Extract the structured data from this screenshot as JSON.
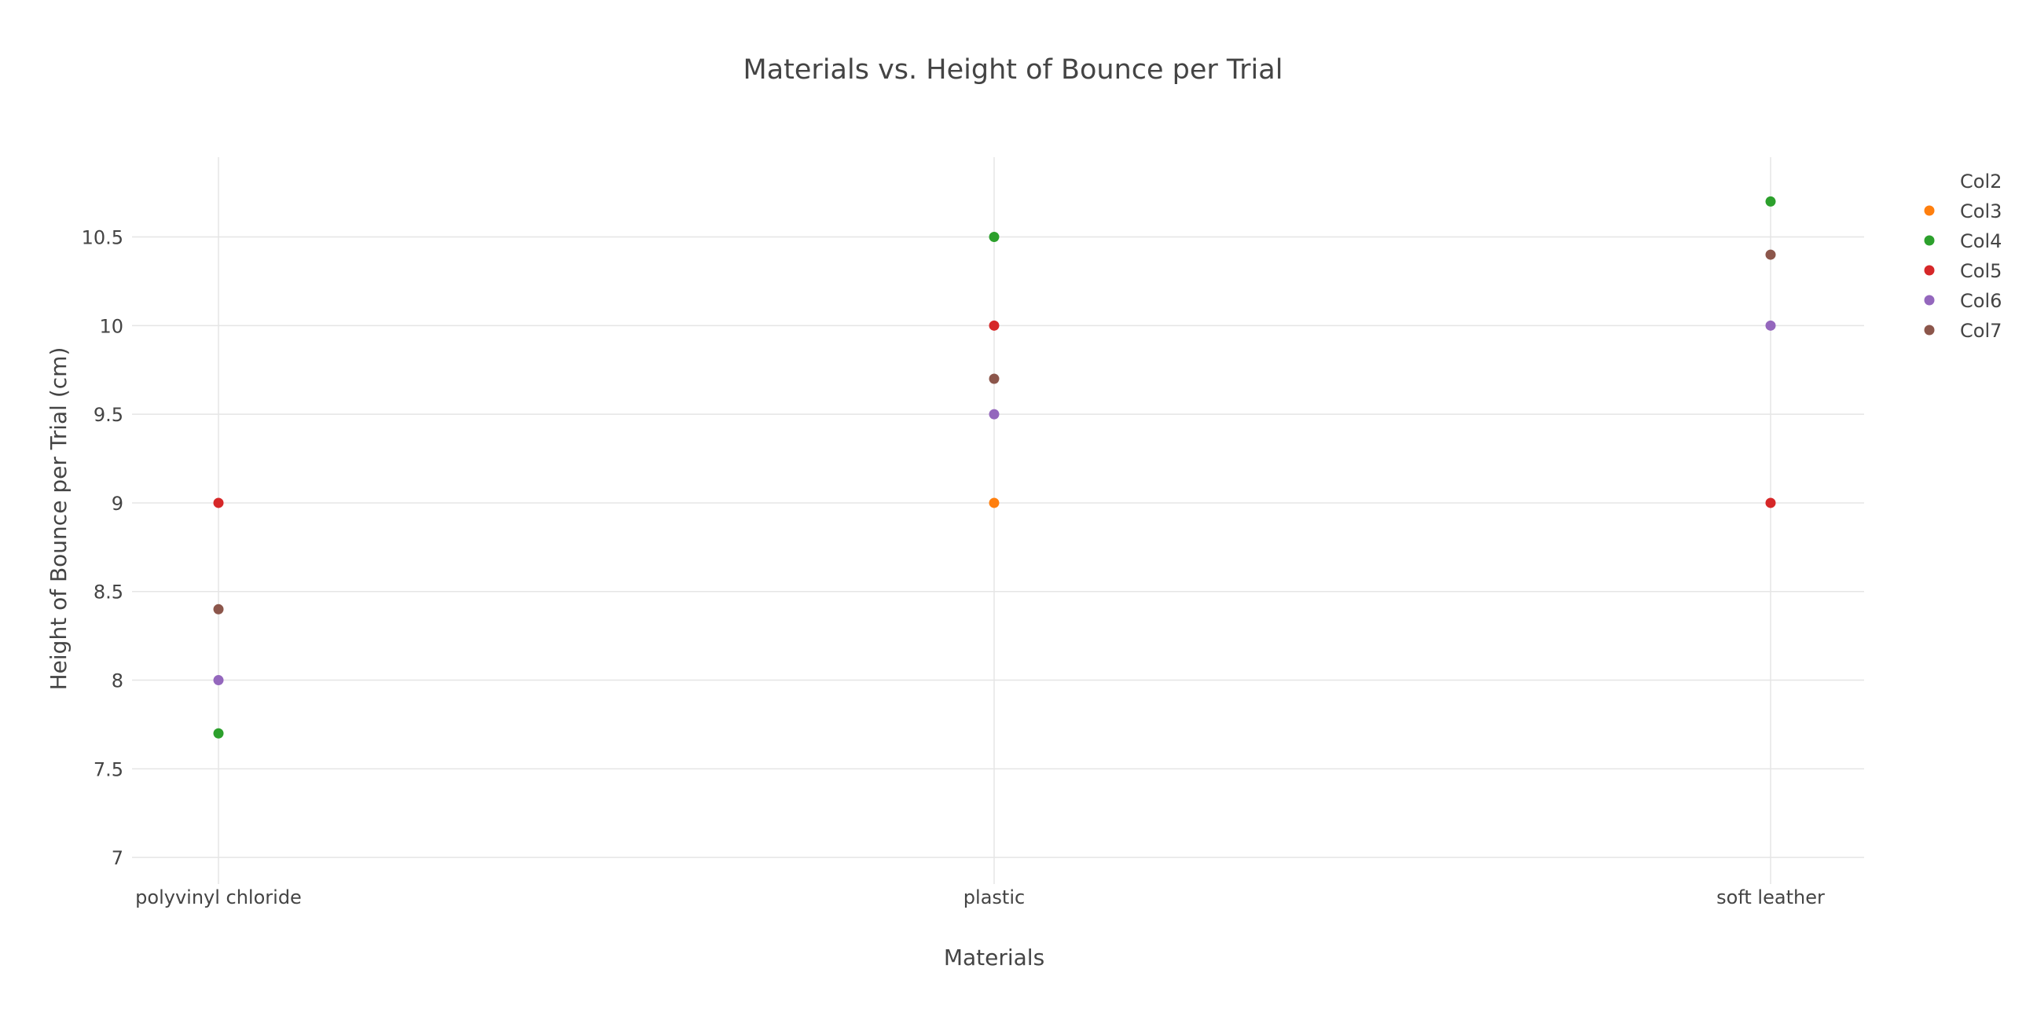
{
  "chart_data": {
    "type": "scatter",
    "title": "Materials vs. Height of Bounce per Trial",
    "xlabel": "Materials",
    "ylabel": "Height of Bounce per Trial (cm)",
    "categories": [
      "polyvinyl chloride",
      "plastic",
      "soft leather"
    ],
    "ylim": [
      6.85,
      10.95
    ],
    "yticks": [
      7,
      7.5,
      8,
      8.5,
      9,
      9.5,
      10,
      10.5
    ],
    "ytick_labels": [
      "7",
      "7.5",
      "8",
      "8.5",
      "9",
      "9.5",
      "10",
      "10.5"
    ],
    "grid": true,
    "legend_position": "top-right",
    "series": [
      {
        "name": "Col2",
        "color": "#1f77b4",
        "values": [
          null,
          null,
          null
        ]
      },
      {
        "name": "Col3",
        "color": "#ff7f0e",
        "values": [
          null,
          9,
          null
        ]
      },
      {
        "name": "Col4",
        "color": "#2ca02c",
        "values": [
          7.7,
          10.5,
          10.7
        ]
      },
      {
        "name": "Col5",
        "color": "#d62728",
        "values": [
          9,
          10,
          9
        ]
      },
      {
        "name": "Col6",
        "color": "#9467bd",
        "values": [
          8,
          9.5,
          10
        ]
      },
      {
        "name": "Col7",
        "color": "#8c564b",
        "values": [
          8.4,
          9.7,
          10.4
        ]
      }
    ]
  }
}
